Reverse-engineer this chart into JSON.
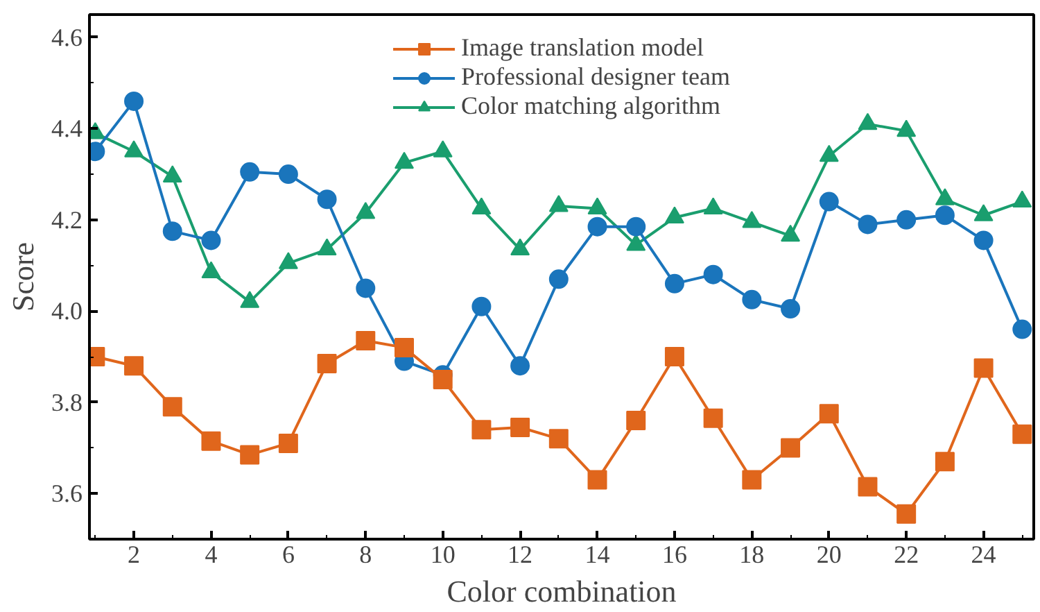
{
  "chart_data": {
    "type": "line",
    "xlabel": "Color combination",
    "ylabel": "Score",
    "x": [
      1,
      2,
      3,
      4,
      5,
      6,
      7,
      8,
      9,
      10,
      11,
      12,
      13,
      14,
      15,
      16,
      17,
      18,
      19,
      20,
      21,
      22,
      23,
      24,
      25
    ],
    "series": [
      {
        "name": "Image translation model",
        "color": "#e0661c",
        "marker": "square",
        "values": [
          3.9,
          3.88,
          3.79,
          3.715,
          3.685,
          3.71,
          3.885,
          3.935,
          3.92,
          3.85,
          3.74,
          3.745,
          3.72,
          3.63,
          3.76,
          3.9,
          3.765,
          3.63,
          3.7,
          3.775,
          3.615,
          3.555,
          3.67,
          3.875,
          3.73
        ]
      },
      {
        "name": "Professional designer team",
        "color": "#1a75bc",
        "marker": "circle",
        "values": [
          4.35,
          4.46,
          4.175,
          4.155,
          4.305,
          4.3,
          4.245,
          4.05,
          3.89,
          3.86,
          4.01,
          3.88,
          4.07,
          4.185,
          4.185,
          4.06,
          4.08,
          4.025,
          4.005,
          4.24,
          4.19,
          4.2,
          4.21,
          4.155,
          3.96
        ]
      },
      {
        "name": "Color matching algorithm",
        "color": "#1a9e6e",
        "marker": "triangle",
        "values": [
          4.39,
          4.35,
          4.295,
          4.085,
          4.02,
          4.105,
          4.135,
          4.215,
          4.325,
          4.35,
          4.225,
          4.135,
          4.23,
          4.225,
          4.145,
          4.205,
          4.225,
          4.195,
          4.165,
          4.34,
          4.41,
          4.395,
          4.245,
          4.21,
          4.24
        ]
      }
    ],
    "xlim": [
      0.85,
      25.3
    ],
    "xticks": [
      2,
      4,
      6,
      8,
      10,
      12,
      14,
      16,
      18,
      20,
      22,
      24
    ],
    "ylim": [
      3.5,
      4.65
    ],
    "yticks": [
      3.6,
      3.8,
      {
        "value": 4.0,
        "label": "4.0"
      },
      4.2,
      4.4,
      4.6
    ],
    "grid": false,
    "legend": "top",
    "line_style": "solid"
  }
}
